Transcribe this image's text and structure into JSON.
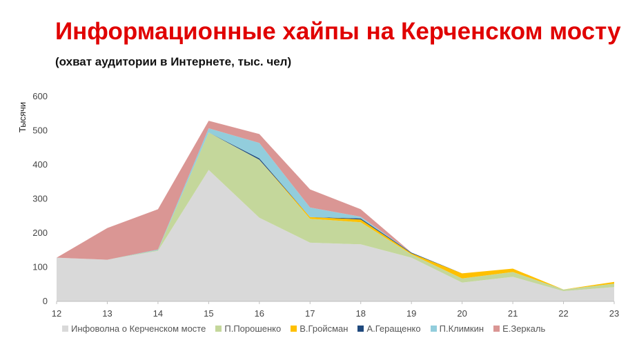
{
  "header": {
    "title": "Информационные хайпы на Керченском мосту",
    "subtitle": "(охват аудитории в Интернете, тыс. чел)"
  },
  "chart_data": {
    "type": "area",
    "stacked": true,
    "ylabel": "Тысячи",
    "xlabel": "",
    "ylim": [
      0,
      600
    ],
    "yticks": [
      0,
      100,
      200,
      300,
      400,
      500,
      600
    ],
    "x": [
      12,
      13,
      14,
      15,
      16,
      17,
      18,
      19,
      20,
      21,
      22,
      23
    ],
    "grid": false,
    "legend_position": "bottom",
    "series": [
      {
        "name": "Инфоволна о Керченском мосте",
        "color": "#d9d9d9",
        "values": [
          128,
          122,
          148,
          385,
          245,
          172,
          167,
          128,
          55,
          72,
          30,
          42
        ]
      },
      {
        "name": "П.Порошенко",
        "color": "#c4d79b",
        "values": [
          0,
          0,
          2,
          110,
          170,
          70,
          65,
          10,
          12,
          14,
          5,
          10
        ]
      },
      {
        "name": "В.Гройсман",
        "color": "#ffc000",
        "values": [
          0,
          0,
          0,
          0,
          0,
          5,
          8,
          3,
          15,
          10,
          0,
          5
        ]
      },
      {
        "name": "А.Геращенко",
        "color": "#1f497d",
        "values": [
          0,
          0,
          0,
          0,
          4,
          0,
          3,
          2,
          0,
          0,
          0,
          0
        ]
      },
      {
        "name": "П.Климкин",
        "color": "#92cddc",
        "values": [
          0,
          0,
          2,
          12,
          45,
          28,
          5,
          0,
          0,
          0,
          0,
          0
        ]
      },
      {
        "name": "Е.Зеркаль",
        "color": "#da9694",
        "values": [
          0,
          93,
          118,
          22,
          26,
          53,
          22,
          0,
          0,
          0,
          0,
          0
        ]
      }
    ]
  }
}
